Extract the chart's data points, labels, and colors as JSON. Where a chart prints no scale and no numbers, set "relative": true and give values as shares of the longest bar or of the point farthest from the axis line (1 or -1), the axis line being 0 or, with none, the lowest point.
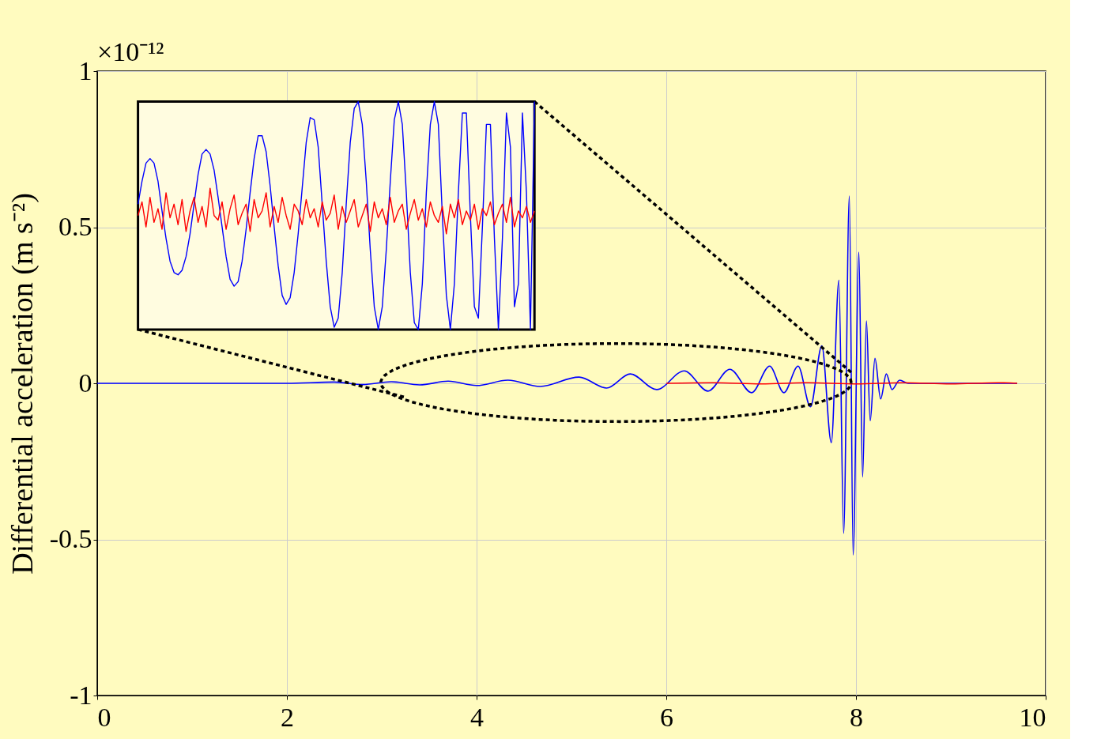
{
  "chart_data": [
    {
      "type": "line",
      "ylabel": "Differential acceleration (m s⁻²)",
      "annotations": [
        "×10⁻¹²"
      ],
      "xlim": [
        0,
        10
      ],
      "xticks": [
        0,
        2,
        4,
        6,
        8,
        10
      ],
      "ylim": [
        -1,
        1
      ],
      "yticks": [
        -1,
        -0.5,
        0,
        0.5,
        1
      ],
      "grid": true,
      "line_style": "solid",
      "series": [
        {
          "color": "#0000ff",
          "x": [
            0,
            1,
            2,
            2.5,
            2.8,
            3.1,
            3.4,
            3.7,
            4.0,
            4.33,
            4.67,
            5.08,
            5.37,
            5.62,
            5.9,
            6.19,
            6.44,
            6.67,
            6.9,
            7.09,
            7.24,
            7.39,
            7.52,
            7.64,
            7.74,
            7.82,
            7.87,
            7.93,
            7.97,
            8.03,
            8.07,
            8.11,
            8.15,
            8.2,
            8.26,
            8.32,
            8.38,
            8.46,
            8.55,
            9.0,
            9.7
          ],
          "values": [
            0,
            0,
            0,
            0.004,
            -0.004,
            0.005,
            -0.005,
            0.007,
            -0.007,
            0.01,
            -0.01,
            0.02,
            -0.015,
            0.03,
            -0.02,
            0.04,
            -0.025,
            0.045,
            -0.03,
            0.055,
            -0.03,
            0.055,
            -0.075,
            0.12,
            -0.19,
            0.33,
            -0.48,
            0.6,
            -0.55,
            0.42,
            -0.3,
            0.2,
            -0.12,
            0.08,
            -0.05,
            0.03,
            -0.02,
            0.01,
            0,
            0,
            0
          ]
        },
        {
          "color": "#ff0000",
          "x": [
            6.0,
            6.5,
            7.0,
            7.5,
            8.0,
            8.5,
            9.0,
            9.5,
            9.7
          ],
          "values": [
            0,
            0.002,
            -0.002,
            0.002,
            -0.002,
            0.002,
            -0.002,
            0.002,
            0
          ]
        }
      ]
    },
    {
      "type": "line",
      "relative": true,
      "tick_labels": false,
      "line_style": "solid",
      "categories": [
        null,
        null,
        null,
        null,
        null,
        null,
        null,
        null,
        null,
        null,
        null,
        null,
        null,
        null,
        null,
        null,
        null,
        null,
        null,
        null,
        null,
        null,
        null,
        null,
        null,
        null,
        null,
        null,
        null,
        null,
        null,
        null,
        null,
        null,
        null,
        null,
        null,
        null,
        null,
        null,
        null,
        null,
        null,
        null,
        null,
        null,
        null,
        null,
        null,
        null,
        null,
        null,
        null,
        null,
        null,
        null,
        null,
        null,
        null,
        null,
        null,
        null,
        null,
        null,
        null,
        null,
        null,
        null,
        null,
        null,
        null,
        null,
        null,
        null,
        null,
        null,
        null,
        null,
        null,
        null,
        null,
        null,
        null,
        null,
        null,
        null,
        null,
        null,
        null,
        null,
        null,
        null,
        null,
        null,
        null,
        null,
        null,
        null,
        null,
        null
      ],
      "series": [
        {
          "color": "#0000ff",
          "values": [
            0.55,
            0.65,
            0.73,
            0.75,
            0.73,
            0.65,
            0.52,
            0.4,
            0.3,
            0.25,
            0.24,
            0.26,
            0.32,
            0.42,
            0.55,
            0.68,
            0.77,
            0.79,
            0.77,
            0.7,
            0.58,
            0.45,
            0.32,
            0.22,
            0.19,
            0.21,
            0.3,
            0.44,
            0.6,
            0.75,
            0.85,
            0.85,
            0.78,
            0.63,
            0.45,
            0.28,
            0.15,
            0.11,
            0.14,
            0.25,
            0.42,
            0.62,
            0.82,
            0.93,
            0.92,
            0.8,
            0.55,
            0.3,
            0.1,
            0.01,
            0.05,
            0.25,
            0.55,
            0.82,
            0.97,
            1,
            0.9,
            0.65,
            0.35,
            0.1,
            0,
            0.1,
            0.35,
            0.65,
            0.92,
            1,
            0.9,
            0.6,
            0.25,
            0.03,
            0,
            0.2,
            0.6,
            0.9,
            1,
            0.9,
            0.5,
            0.15,
            0,
            0.2,
            0.6,
            0.95,
            0.95,
            0.5,
            0.1,
            0.05,
            0.45,
            0.9,
            0.9,
            0.4,
            0,
            0.4,
            0.95,
            0.8,
            0.1,
            0.2,
            0.95,
            0.6,
            0,
            1
          ]
        },
        {
          "color": "#ff0000",
          "values": [
            0.5,
            0.56,
            0.45,
            0.58,
            0.47,
            0.53,
            0.44,
            0.6,
            0.49,
            0.55,
            0.46,
            0.57,
            0.43,
            0.52,
            0.58,
            0.47,
            0.54,
            0.45,
            0.62,
            0.5,
            0.48,
            0.56,
            0.44,
            0.53,
            0.59,
            0.46,
            0.51,
            0.55,
            0.43,
            0.57,
            0.49,
            0.52,
            0.6,
            0.45,
            0.54,
            0.47,
            0.58,
            0.5,
            0.44,
            0.55,
            0.52,
            0.46,
            0.57,
            0.49,
            0.53,
            0.45,
            0.56,
            0.48,
            0.51,
            0.59,
            0.44,
            0.54,
            0.47,
            0.52,
            0.57,
            0.45,
            0.5,
            0.55,
            0.43,
            0.56,
            0.49,
            0.53,
            0.46,
            0.58,
            0.47,
            0.52,
            0.55,
            0.44,
            0.51,
            0.57,
            0.48,
            0.53,
            0.45,
            0.56,
            0.5,
            0.47,
            0.54,
            0.42,
            0.55,
            0.49,
            0.57,
            0.46,
            0.52,
            0.48,
            0.55,
            0.44,
            0.53,
            0.5,
            0.56,
            0.46,
            0.51,
            0.55,
            0.47,
            0.58,
            0.45,
            0.52,
            0.49,
            0.54,
            0.47,
            0.52
          ]
        }
      ]
    }
  ]
}
